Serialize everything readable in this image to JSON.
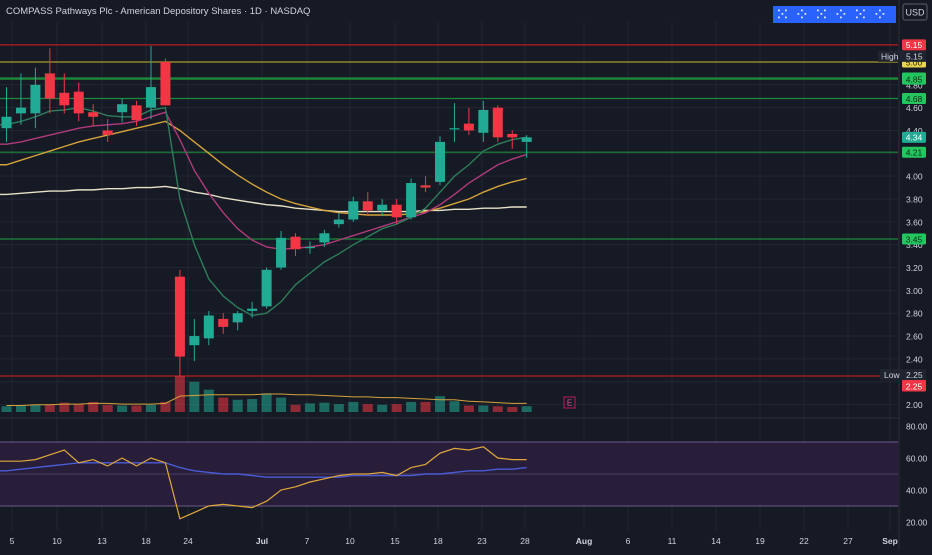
{
  "header": {
    "title": "COMPASS Pathways Plc - American Depository Shares · 1D · NASDAQ",
    "currency": "USD"
  },
  "colors": {
    "background": "#161a25",
    "up": "#22ab94",
    "down": "#f23645",
    "grid": "#222632",
    "axis_text": "#d1d4dc",
    "sma_fast": "#2e7d5b",
    "sma_mid": "#b03a7a",
    "sma_slow": "#d4a23a",
    "sma_long": "#e8e2c8",
    "level_red": "#b71c1c",
    "level_green": "#1b8a3a",
    "level_yellow": "#a89b2a",
    "rsi": "#e0a93a",
    "rsi_ma": "#4a5bd6",
    "rsi_band": "#2a1f3d",
    "toolbar_blue": "#2962ff"
  },
  "chart_data": [
    {
      "type": "candlestick",
      "title": "COMPASS Pathways Plc - American Depository Shares · 1D · NASDAQ",
      "ylim": [
        1.9,
        5.35
      ],
      "y_ticks": [
        2.0,
        2.2,
        2.4,
        2.6,
        2.8,
        3.0,
        3.2,
        3.4,
        3.6,
        3.8,
        4.0,
        4.2,
        4.4,
        4.6,
        4.8,
        5.0
      ],
      "x_ticks": [
        "5",
        "10",
        "13",
        "18",
        "24",
        "Jul",
        "7",
        "10",
        "15",
        "18",
        "23",
        "28",
        "Aug",
        "6",
        "11",
        "14",
        "19",
        "22",
        "27",
        "Sep"
      ],
      "candles": [
        {
          "o": 4.42,
          "h": 4.78,
          "l": 4.3,
          "c": 4.52
        },
        {
          "o": 4.55,
          "h": 4.9,
          "l": 4.45,
          "c": 4.6
        },
        {
          "o": 4.55,
          "h": 4.95,
          "l": 4.42,
          "c": 4.8
        },
        {
          "o": 4.9,
          "h": 5.12,
          "l": 4.55,
          "c": 4.68
        },
        {
          "o": 4.73,
          "h": 4.9,
          "l": 4.55,
          "c": 4.62
        },
        {
          "o": 4.74,
          "h": 4.82,
          "l": 4.48,
          "c": 4.55
        },
        {
          "o": 4.56,
          "h": 4.63,
          "l": 4.44,
          "c": 4.52
        },
        {
          "o": 4.4,
          "h": 4.5,
          "l": 4.3,
          "c": 4.36
        },
        {
          "o": 4.56,
          "h": 4.68,
          "l": 4.47,
          "c": 4.63
        },
        {
          "o": 4.62,
          "h": 4.66,
          "l": 4.44,
          "c": 4.49
        },
        {
          "o": 4.6,
          "h": 5.14,
          "l": 4.5,
          "c": 4.78
        },
        {
          "o": 5.0,
          "h": 5.03,
          "l": 4.62,
          "c": 4.62
        },
        {
          "o": 3.12,
          "h": 3.18,
          "l": 2.25,
          "c": 2.42
        },
        {
          "o": 2.52,
          "h": 2.75,
          "l": 2.38,
          "c": 2.6
        },
        {
          "o": 2.58,
          "h": 2.82,
          "l": 2.52,
          "c": 2.78
        },
        {
          "o": 2.75,
          "h": 2.8,
          "l": 2.62,
          "c": 2.68
        },
        {
          "o": 2.72,
          "h": 2.82,
          "l": 2.65,
          "c": 2.8
        },
        {
          "o": 2.82,
          "h": 2.9,
          "l": 2.76,
          "c": 2.84
        },
        {
          "o": 2.86,
          "h": 3.2,
          "l": 2.84,
          "c": 3.18
        },
        {
          "o": 3.2,
          "h": 3.52,
          "l": 3.18,
          "c": 3.46
        },
        {
          "o": 3.47,
          "h": 3.5,
          "l": 3.3,
          "c": 3.36
        },
        {
          "o": 3.37,
          "h": 3.43,
          "l": 3.32,
          "c": 3.38
        },
        {
          "o": 3.42,
          "h": 3.53,
          "l": 3.38,
          "c": 3.5
        },
        {
          "o": 3.58,
          "h": 3.68,
          "l": 3.55,
          "c": 3.62
        },
        {
          "o": 3.62,
          "h": 3.82,
          "l": 3.6,
          "c": 3.78
        },
        {
          "o": 3.78,
          "h": 3.86,
          "l": 3.66,
          "c": 3.7
        },
        {
          "o": 3.7,
          "h": 3.8,
          "l": 3.65,
          "c": 3.75
        },
        {
          "o": 3.75,
          "h": 3.8,
          "l": 3.58,
          "c": 3.64
        },
        {
          "o": 3.64,
          "h": 3.98,
          "l": 3.62,
          "c": 3.94
        },
        {
          "o": 3.92,
          "h": 4.0,
          "l": 3.86,
          "c": 3.9
        },
        {
          "o": 3.95,
          "h": 4.35,
          "l": 3.92,
          "c": 4.3
        },
        {
          "o": 4.42,
          "h": 4.64,
          "l": 4.3,
          "c": 4.42
        },
        {
          "o": 4.46,
          "h": 4.6,
          "l": 4.36,
          "c": 4.4
        },
        {
          "o": 4.38,
          "h": 4.66,
          "l": 4.3,
          "c": 4.58
        },
        {
          "o": 4.6,
          "h": 4.62,
          "l": 4.3,
          "c": 4.34
        },
        {
          "o": 4.37,
          "h": 4.4,
          "l": 4.24,
          "c": 4.34
        },
        {
          "o": 4.3,
          "h": 4.36,
          "l": 4.16,
          "c": 4.34
        }
      ],
      "sma_fast": [
        4.45,
        4.48,
        4.52,
        4.57,
        4.58,
        4.6,
        4.57,
        4.53,
        4.52,
        4.52,
        4.58,
        4.6,
        3.8,
        3.4,
        3.1,
        2.95,
        2.85,
        2.78,
        2.8,
        2.9,
        3.05,
        3.15,
        3.25,
        3.32,
        3.4,
        3.47,
        3.54,
        3.58,
        3.64,
        3.72,
        3.86,
        4.0,
        4.1,
        4.22,
        4.28,
        4.32,
        4.34
      ],
      "sma_mid": [
        4.28,
        4.3,
        4.33,
        4.36,
        4.39,
        4.42,
        4.44,
        4.45,
        4.46,
        4.48,
        4.52,
        4.56,
        4.32,
        4.05,
        3.85,
        3.68,
        3.54,
        3.44,
        3.38,
        3.36,
        3.37,
        3.38,
        3.4,
        3.44,
        3.48,
        3.52,
        3.56,
        3.6,
        3.64,
        3.68,
        3.75,
        3.84,
        3.94,
        4.02,
        4.1,
        4.15,
        4.19
      ],
      "sma_slow": [
        4.1,
        4.14,
        4.18,
        4.22,
        4.26,
        4.3,
        4.33,
        4.36,
        4.39,
        4.42,
        4.45,
        4.48,
        4.4,
        4.3,
        4.2,
        4.1,
        4.01,
        3.93,
        3.86,
        3.8,
        3.76,
        3.73,
        3.7,
        3.68,
        3.67,
        3.66,
        3.66,
        3.66,
        3.67,
        3.69,
        3.72,
        3.76,
        3.8,
        3.86,
        3.91,
        3.95,
        3.98
      ],
      "sma_long": [
        3.84,
        3.85,
        3.86,
        3.87,
        3.87,
        3.88,
        3.88,
        3.89,
        3.89,
        3.9,
        3.9,
        3.91,
        3.89,
        3.86,
        3.84,
        3.81,
        3.79,
        3.77,
        3.75,
        3.74,
        3.72,
        3.71,
        3.7,
        3.69,
        3.69,
        3.69,
        3.69,
        3.69,
        3.69,
        3.7,
        3.7,
        3.71,
        3.71,
        3.72,
        3.72,
        3.73,
        3.73
      ],
      "volume": [
        8,
        9,
        10,
        10,
        13,
        11,
        14,
        10,
        9,
        9,
        10,
        14,
        50,
        42,
        31,
        20,
        17,
        18,
        26,
        20,
        10,
        12,
        13,
        11,
        14,
        11,
        10,
        11,
        14,
        14,
        22,
        15,
        9,
        9,
        8,
        7,
        8
      ],
      "volume_ma": [
        9,
        9,
        10,
        10,
        11,
        11,
        12,
        12,
        11,
        11,
        11,
        12,
        22,
        23,
        24,
        24,
        24,
        24,
        25,
        25,
        24,
        24,
        23,
        22,
        21,
        21,
        20,
        20,
        19,
        18,
        17,
        17,
        15,
        14,
        13,
        12,
        12
      ],
      "levels": [
        {
          "value": 5.15,
          "color": "red",
          "label": "5.15"
        },
        {
          "value": 5.0,
          "color": "yellow",
          "label": "5.00"
        },
        {
          "value": 4.86,
          "color": "green",
          "label": "4.86"
        },
        {
          "value": 4.85,
          "color": "green",
          "label": "4.85"
        },
        {
          "value": 4.68,
          "color": "green",
          "label": "4.68"
        },
        {
          "value": 4.21,
          "color": "green",
          "label": "4.21"
        },
        {
          "value": 3.45,
          "color": "green",
          "label": "3.45"
        },
        {
          "value": 2.25,
          "color": "red",
          "label": "2.25"
        }
      ],
      "high_label": {
        "text": "High",
        "value": "5.15"
      },
      "low_label": {
        "text": "Low",
        "value": "2.25"
      },
      "last_price": {
        "value": 4.34,
        "label": "4.34"
      },
      "earnings_marker": "E"
    },
    {
      "type": "line",
      "ylim": [
        15,
        85
      ],
      "y_ticks": [
        20.0,
        40.0,
        60.0,
        80.0
      ],
      "band": [
        30,
        70
      ],
      "rsi": [
        58,
        58,
        59,
        62,
        65,
        57,
        59,
        55,
        60,
        55,
        60,
        57,
        22,
        26,
        30,
        31,
        30,
        29,
        33,
        40,
        42,
        45,
        47,
        49,
        50,
        50,
        51,
        49,
        54,
        56,
        63,
        66,
        65,
        67,
        60,
        59,
        59
      ],
      "rsi_ma": [
        52,
        53,
        54,
        55,
        56,
        57,
        57,
        57,
        57,
        57,
        57,
        57,
        54,
        52,
        51,
        50,
        50,
        49,
        48,
        48,
        48,
        48,
        48,
        48,
        49,
        49,
        49,
        49,
        49,
        50,
        50,
        51,
        52,
        52,
        53,
        53,
        54
      ]
    }
  ]
}
